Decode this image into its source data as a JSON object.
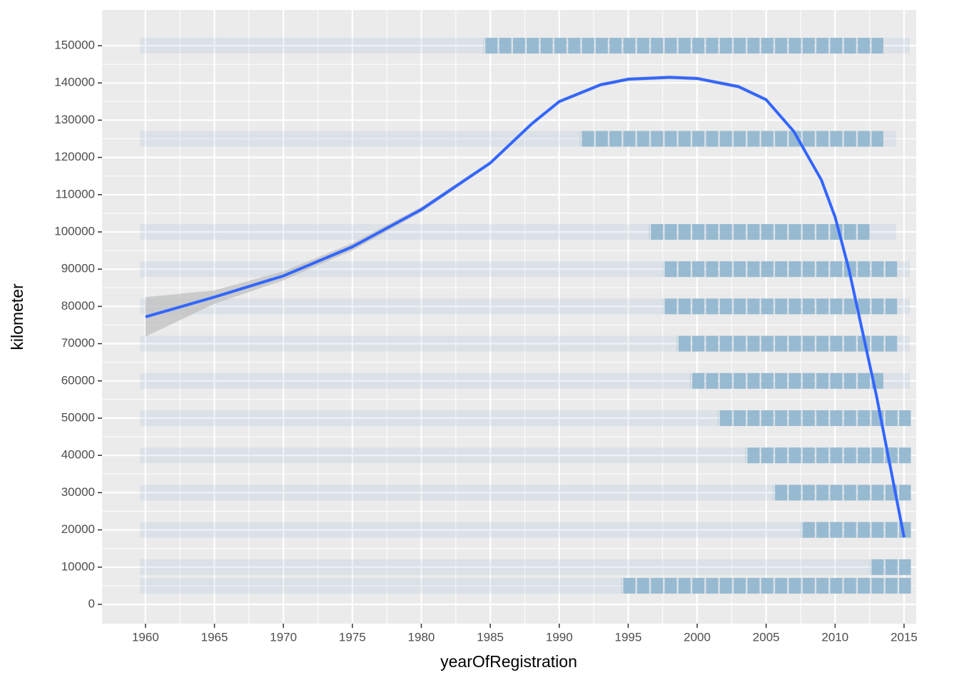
{
  "chart_data": {
    "type": "scatter",
    "x_label": "yearOfRegistration",
    "y_label": "kilometer",
    "xlim": [
      1956.85,
      2015.88
    ],
    "ylim": [
      -5170,
      159580
    ],
    "xticks": [
      1960,
      1965,
      1970,
      1975,
      1980,
      1985,
      1990,
      1995,
      2000,
      2005,
      2010,
      2015
    ],
    "yticks": [
      0,
      10000,
      20000,
      30000,
      40000,
      50000,
      60000,
      70000,
      80000,
      90000,
      100000,
      110000,
      120000,
      130000,
      140000,
      150000
    ],
    "grid": true,
    "point_color": "#93b8d0",
    "levels": [
      {
        "y": 150000,
        "sparse": [
          1960,
          2015
        ],
        "dense": [
          1985,
          2013
        ]
      },
      {
        "y": 125000,
        "sparse": [
          1960,
          2014
        ],
        "dense": [
          1992,
          2013
        ]
      },
      {
        "y": 100000,
        "sparse": [
          1960,
          2014
        ],
        "dense": [
          1997,
          2012
        ]
      },
      {
        "y": 90000,
        "sparse": [
          1960,
          2015
        ],
        "dense": [
          1998,
          2014
        ]
      },
      {
        "y": 80000,
        "sparse": [
          1960,
          2015
        ],
        "dense": [
          1998,
          2014
        ]
      },
      {
        "y": 70000,
        "sparse": [
          1960,
          2015
        ],
        "dense": [
          1999,
          2014
        ]
      },
      {
        "y": 60000,
        "sparse": [
          1960,
          2015
        ],
        "dense": [
          2000,
          2013
        ]
      },
      {
        "y": 50000,
        "sparse": [
          1960,
          2015
        ],
        "dense": [
          2002,
          2015
        ]
      },
      {
        "y": 40000,
        "sparse": [
          1960,
          2015
        ],
        "dense": [
          2004,
          2015
        ]
      },
      {
        "y": 30000,
        "sparse": [
          1960,
          2015
        ],
        "dense": [
          2006,
          2015
        ]
      },
      {
        "y": 20000,
        "sparse": [
          1960,
          2015
        ],
        "dense": [
          2008,
          2015
        ]
      },
      {
        "y": 10000,
        "sparse": [
          1960,
          2015
        ],
        "dense": [
          2013,
          2015
        ]
      },
      {
        "y": 5000,
        "sparse": [
          1960,
          2015
        ],
        "dense": [
          1995,
          2015
        ]
      }
    ],
    "smooth": {
      "color": "#3366ff",
      "band_color": "#bdbdbd",
      "x": [
        1960,
        1965,
        1970,
        1975,
        1980,
        1985,
        1988,
        1990,
        1993,
        1995,
        1998,
        2000,
        2003,
        2005,
        2007,
        2009,
        2010,
        2011,
        2012,
        2013,
        2014,
        2015
      ],
      "values": [
        77200,
        82500,
        88200,
        96000,
        106000,
        118500,
        129000,
        135000,
        139500,
        141000,
        141500,
        141200,
        139000,
        135500,
        127000,
        114000,
        104000,
        90000,
        73000,
        56000,
        37000,
        18000
      ],
      "lower": [
        71900,
        80700,
        87000,
        95000,
        105300,
        118000,
        128500,
        134500,
        139000,
        140500,
        141000,
        140700,
        138500,
        135000,
        126500,
        113500,
        103500,
        89500,
        72500,
        55500,
        36500,
        17500
      ],
      "upper": [
        82500,
        84300,
        89400,
        97000,
        106700,
        119000,
        129500,
        135500,
        140000,
        141500,
        142000,
        141700,
        139500,
        136000,
        127500,
        114500,
        104500,
        90500,
        73500,
        56500,
        37500,
        18500
      ]
    }
  }
}
